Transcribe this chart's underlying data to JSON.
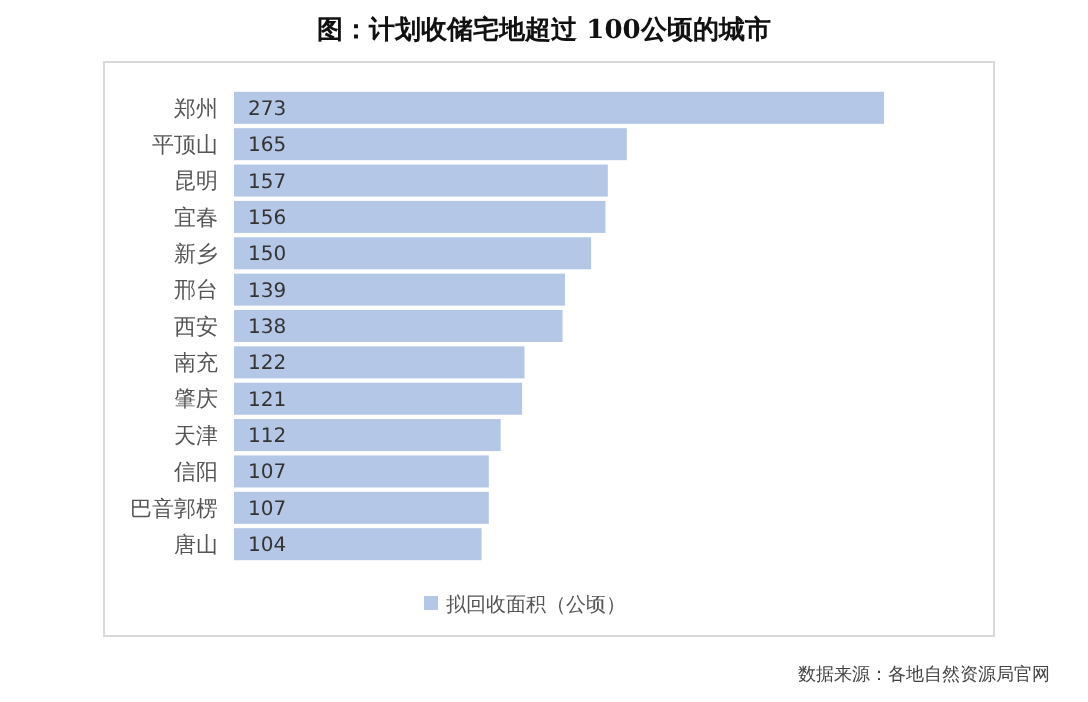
{
  "chart_data": {
    "type": "bar",
    "orientation": "horizontal",
    "title": "图：计划收储宅地超过 100公顷的城市",
    "categories": [
      "郑州",
      "平顶山",
      "昆明",
      "宜春",
      "新乡",
      "邢台",
      "西安",
      "南充",
      "肇庆",
      "天津",
      "信阳",
      "巴音郭楞",
      "唐山"
    ],
    "series": [
      {
        "name": "拟回收面积（公顷）",
        "color": "#b4c7e7",
        "values": [
          273,
          165,
          157,
          156,
          150,
          139,
          138,
          122,
          121,
          112,
          107,
          107,
          104
        ]
      }
    ],
    "data_labels": true,
    "legend": "bottom",
    "grid": false,
    "annotations": [
      "数据来源：各地自然资源局官网"
    ]
  }
}
